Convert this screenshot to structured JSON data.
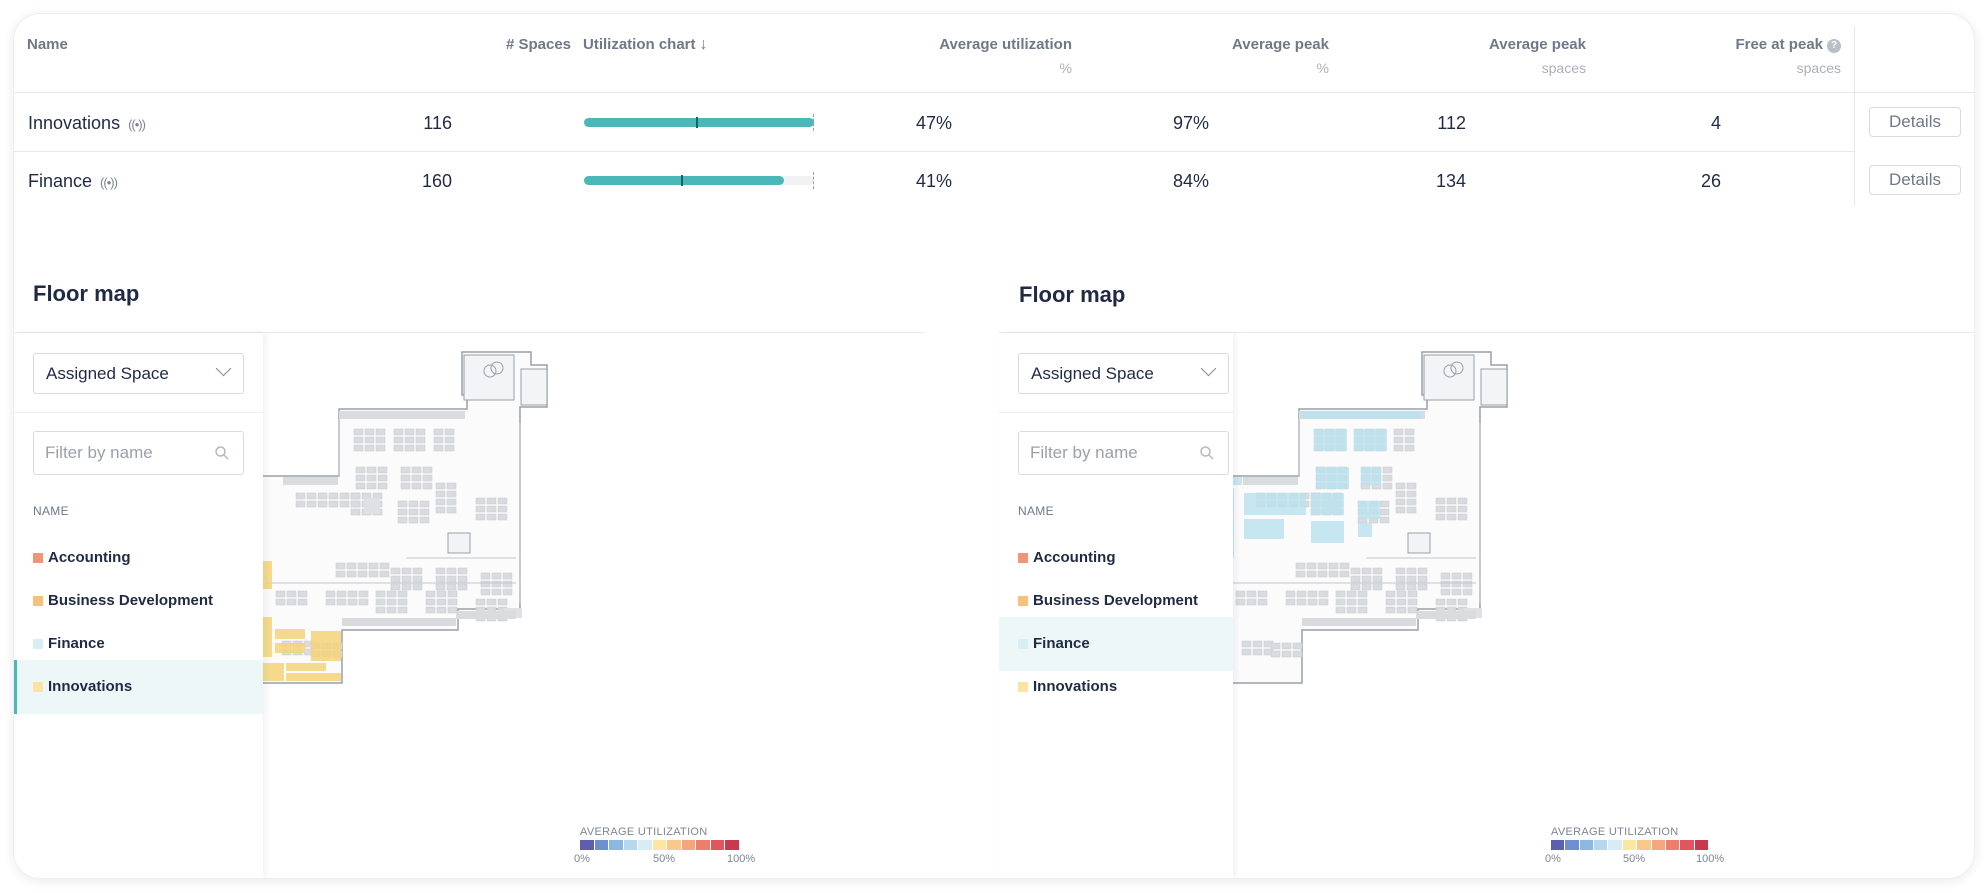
{
  "table": {
    "headers": {
      "name": "Name",
      "spaces": "# Spaces",
      "chart": "Utilization chart",
      "avg_util": "Average utilization",
      "avg_util_unit": "%",
      "avg_peak": "Average peak",
      "avg_peak_unit": "%",
      "avg_peak_spaces": "Average peak",
      "avg_peak_spaces_unit": "spaces",
      "free_at_peak": "Free at peak",
      "free_at_peak_unit": "spaces"
    },
    "rows": [
      {
        "name": "Innovations",
        "spaces": "116",
        "bar_fill": 1.0,
        "bar_mark": 0.485,
        "avg_util": "47%",
        "avg_peak": "97%",
        "avg_peak_spaces": "112",
        "free_at_peak": "4",
        "details": "Details"
      },
      {
        "name": "Finance",
        "spaces": "160",
        "bar_fill": 0.87,
        "bar_mark": 0.42,
        "avg_util": "41%",
        "avg_peak": "84%",
        "avg_peak_spaces": "134",
        "free_at_peak": "26",
        "details": "Details"
      }
    ]
  },
  "panels": [
    {
      "title": "Floor map",
      "select_value": "Assigned Space",
      "filter_placeholder": "Filter by name",
      "list_header": "NAME",
      "items": [
        {
          "label": "Accounting",
          "color": "#f0957a"
        },
        {
          "label": "Business Development",
          "color": "#f6c17e"
        },
        {
          "label": "Finance",
          "color": "#d7eef3"
        },
        {
          "label": "Innovations",
          "color": "#fbe3a2"
        }
      ],
      "active_item": "Innovations",
      "legend": {
        "title": "AVERAGE UTILIZATION",
        "ticks": [
          "0%",
          "50%",
          "100%"
        ]
      },
      "highlight_color": "#f3d37a"
    },
    {
      "title": "Floor map",
      "select_value": "Assigned Space",
      "filter_placeholder": "Filter by name",
      "list_header": "NAME",
      "items": [
        {
          "label": "Accounting",
          "color": "#f0957a"
        },
        {
          "label": "Business Development",
          "color": "#f6c17e"
        },
        {
          "label": "Finance",
          "color": "#d7eef3"
        },
        {
          "label": "Innovations",
          "color": "#fbe3a2"
        }
      ],
      "active_item": "Finance",
      "legend": {
        "title": "AVERAGE UTILIZATION",
        "ticks": [
          "0%",
          "50%",
          "100%"
        ]
      },
      "highlight_color": "#b9e1ee"
    }
  ],
  "legend_colors": [
    "#5d5fae",
    "#6d8fcf",
    "#8db7e1",
    "#b6d8ec",
    "#d9ecf3",
    "#fbe6a4",
    "#f9c98a",
    "#f5a77b",
    "#ee7e6c",
    "#e0555f",
    "#c8394f"
  ]
}
